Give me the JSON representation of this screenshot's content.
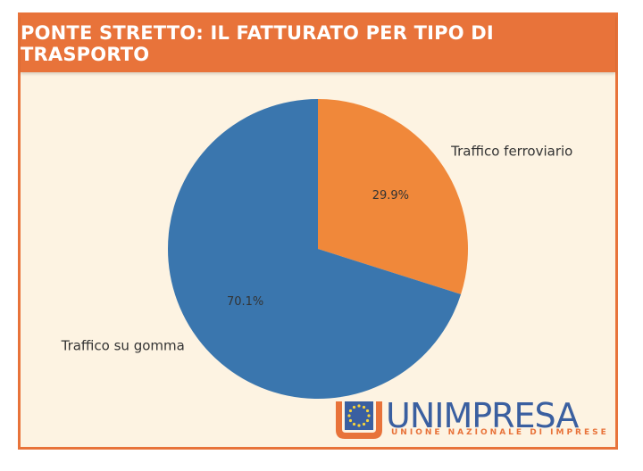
{
  "header": {
    "title": "PONTE STRETTO: IL FATTURATO PER TIPO DI TRASPORTO"
  },
  "chart_data": {
    "type": "pie",
    "title": "PONTE STRETTO: IL FATTURATO PER TIPO DI TRASPORTO",
    "categories": [
      "Traffico ferroviario",
      "Traffico su gomma"
    ],
    "values": [
      29.9,
      70.1
    ],
    "value_labels": [
      "29.9%",
      "70.1%"
    ],
    "colors": [
      "#f0883a",
      "#3a76ae"
    ],
    "start_angle_deg": 90,
    "direction": "clockwise"
  },
  "logo": {
    "name": "UNIMPRESA",
    "subtitle": "UNIONE NAZIONALE DI IMPRESE",
    "icon": "eu-stars-emblem-icon",
    "accent": "#e8733a",
    "brand": "#3a5fa0"
  }
}
